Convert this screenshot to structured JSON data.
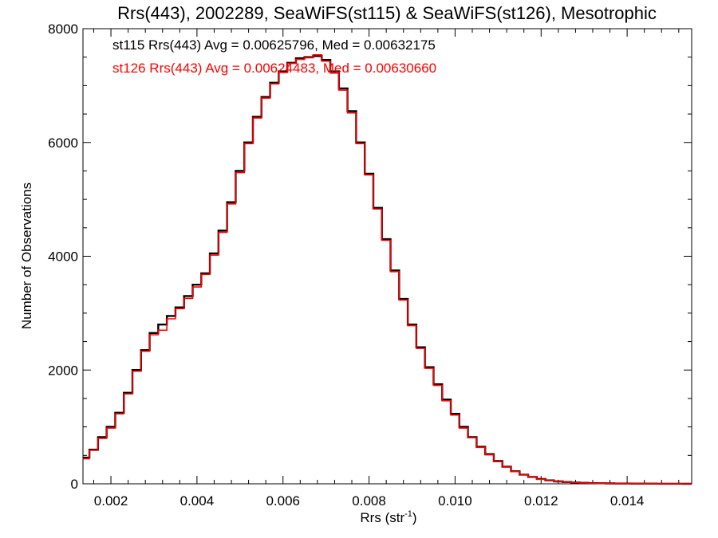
{
  "chart_data": {
    "type": "line",
    "title": "Rrs(443), 2002289, SeaWiFS(st115) & SeaWiFS(st126), Mesotrophic",
    "xlabel_main": "Rrs (str",
    "xlabel_sup": "-1",
    "xlabel_end": ")",
    "ylabel": "Number of Observations",
    "xlim": [
      0.00135,
      0.0155
    ],
    "ylim": [
      0,
      8000
    ],
    "x_ticks": [
      0.002,
      0.004,
      0.006,
      0.008,
      0.01,
      0.012,
      0.014
    ],
    "x_tick_labels": [
      "0.002",
      "0.004",
      "0.006",
      "0.008",
      "0.010",
      "0.012",
      "0.014"
    ],
    "y_ticks": [
      0,
      2000,
      4000,
      6000,
      8000
    ],
    "y_tick_labels": [
      "0",
      "2000",
      "4000",
      "6000",
      "8000"
    ],
    "grid": false,
    "annotations": [
      {
        "text": "st115 Rrs(443) Avg = 0.00625796, Med = 0.00632175",
        "color": "#000000"
      },
      {
        "text": "st126 Rrs(443) Avg = 0.00624483, Med = 0.00630660",
        "color": "#ff0000"
      }
    ],
    "x": [
      0.00135,
      0.0015,
      0.0017,
      0.0019,
      0.0021,
      0.0023,
      0.0025,
      0.0027,
      0.0029,
      0.0031,
      0.0033,
      0.0035,
      0.0037,
      0.0039,
      0.0041,
      0.0043,
      0.0045,
      0.0047,
      0.0049,
      0.0051,
      0.0053,
      0.0055,
      0.0057,
      0.0059,
      0.0061,
      0.0063,
      0.0065,
      0.0067,
      0.0069,
      0.0071,
      0.0073,
      0.0075,
      0.0077,
      0.0079,
      0.0081,
      0.0083,
      0.0085,
      0.0087,
      0.0089,
      0.0091,
      0.0093,
      0.0095,
      0.0097,
      0.0099,
      0.0101,
      0.0103,
      0.0105,
      0.0107,
      0.0109,
      0.0111,
      0.0113,
      0.0115,
      0.0117,
      0.0119,
      0.0121,
      0.0123,
      0.0125,
      0.0127,
      0.0129,
      0.0131,
      0.0133,
      0.0135,
      0.0137,
      0.0139,
      0.0141,
      0.0143,
      0.0145,
      0.0147,
      0.0149,
      0.0151,
      0.0153,
      0.0155
    ],
    "series": [
      {
        "name": "st115",
        "color": "#000000",
        "values": [
          460,
          600,
          820,
          1000,
          1250,
          1600,
          2000,
          2350,
          2650,
          2800,
          2950,
          3100,
          3300,
          3500,
          3700,
          4050,
          4450,
          4950,
          5500,
          6000,
          6450,
          6800,
          7050,
          7250,
          7400,
          7480,
          7500,
          7520,
          7450,
          7250,
          6950,
          6550,
          6000,
          5450,
          4850,
          4300,
          3750,
          3250,
          2800,
          2400,
          2050,
          1750,
          1480,
          1230,
          1000,
          820,
          650,
          520,
          400,
          300,
          220,
          160,
          120,
          85,
          60,
          42,
          30,
          22,
          16,
          12,
          9,
          7,
          5,
          4,
          3,
          2,
          2,
          1,
          1,
          1,
          0,
          0
        ]
      },
      {
        "name": "st126",
        "color": "#ff0000",
        "values": [
          440,
          590,
          800,
          980,
          1230,
          1580,
          1980,
          2330,
          2620,
          2700,
          2900,
          3080,
          3260,
          3460,
          3680,
          4020,
          4420,
          4920,
          5470,
          5980,
          6430,
          6780,
          7030,
          7230,
          7390,
          7460,
          7490,
          7540,
          7430,
          7220,
          6920,
          6520,
          5980,
          5430,
          4830,
          4280,
          3730,
          3230,
          2780,
          2380,
          2030,
          1730,
          1460,
          1210,
          980,
          810,
          640,
          510,
          390,
          295,
          215,
          158,
          118,
          82,
          58,
          40,
          29,
          21,
          15,
          11,
          8,
          6,
          5,
          4,
          3,
          2,
          2,
          1,
          1,
          1,
          0,
          0
        ]
      }
    ]
  }
}
